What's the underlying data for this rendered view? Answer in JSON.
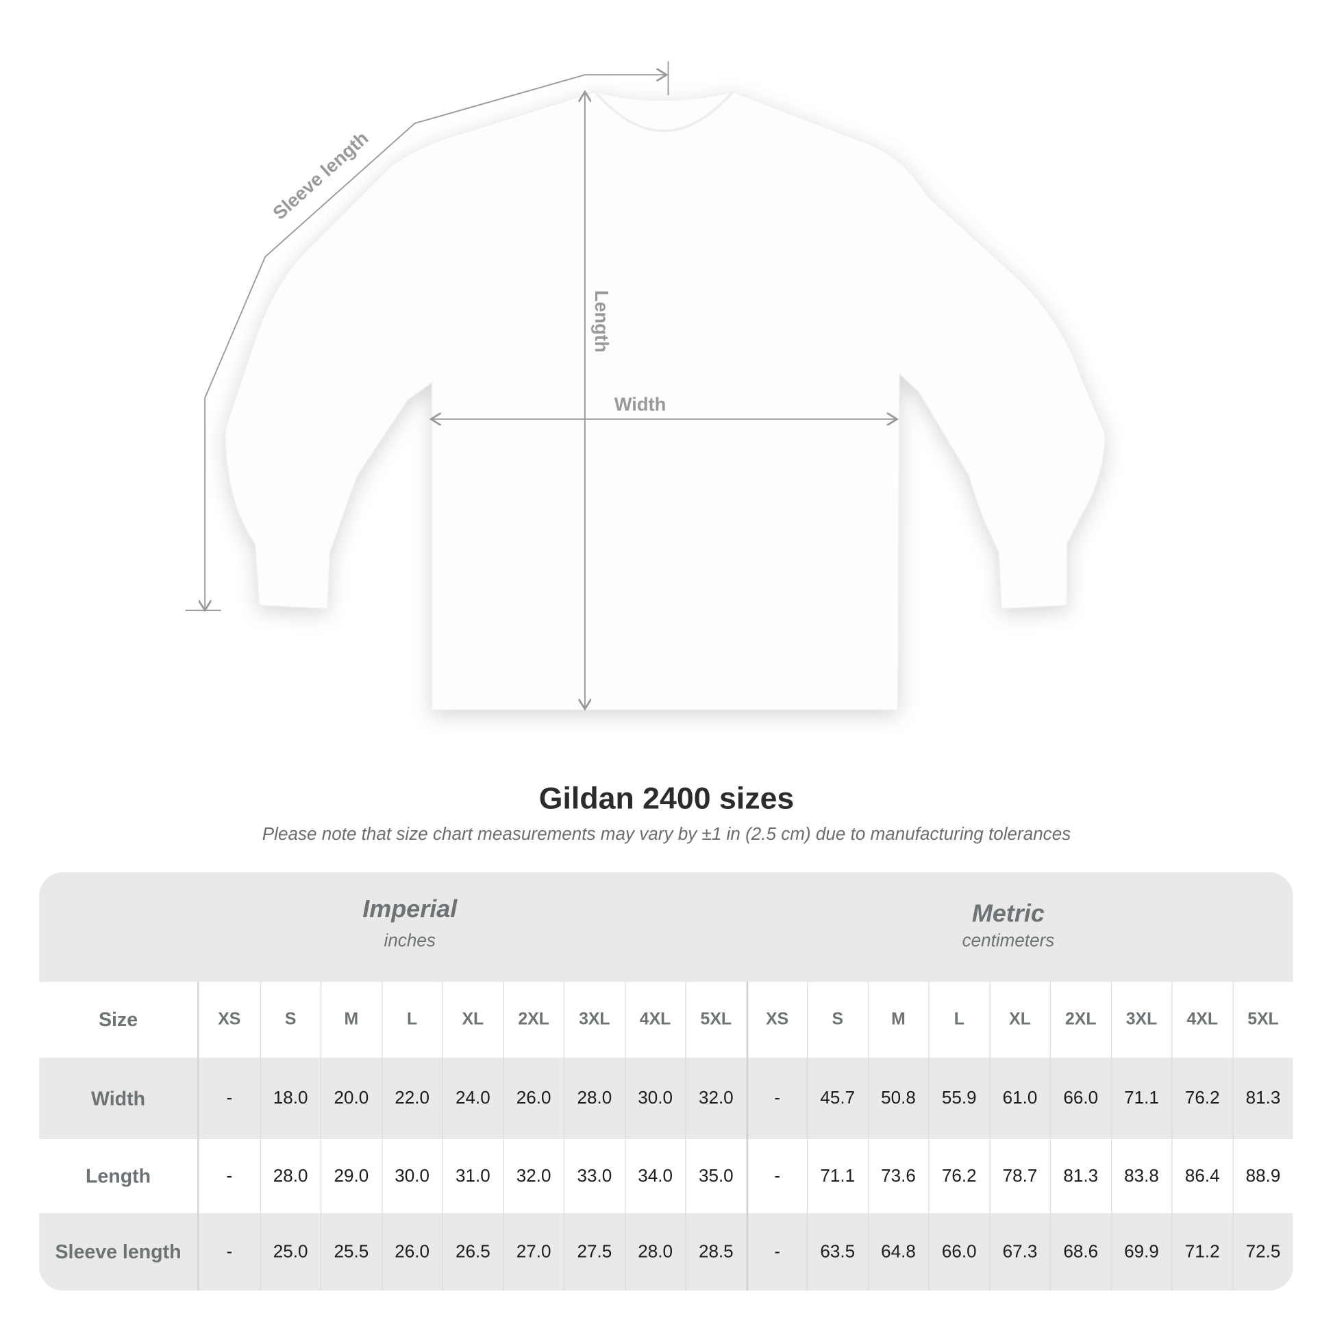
{
  "diagram": {
    "sleeve_label": "Sleeve length",
    "length_label": "Length",
    "width_label": "Width"
  },
  "title": "Gildan 2400 sizes",
  "note": "Please note that size chart measurements may vary by ±1 in (2.5 cm) due to manufacturing tolerances",
  "table": {
    "imperial": {
      "name": "Imperial",
      "unit": "inches"
    },
    "metric": {
      "name": "Metric",
      "unit": "centimeters"
    },
    "size_label": "Size",
    "sizes": [
      "XS",
      "S",
      "M",
      "L",
      "XL",
      "2XL",
      "3XL",
      "4XL",
      "5XL",
      "XS",
      "S",
      "M",
      "L",
      "XL",
      "2XL",
      "3XL",
      "4XL",
      "5XL"
    ],
    "rows": [
      {
        "label": "Width",
        "values": [
          "-",
          "18.0",
          "20.0",
          "22.0",
          "24.0",
          "26.0",
          "28.0",
          "30.0",
          "32.0",
          "-",
          "45.7",
          "50.8",
          "55.9",
          "61.0",
          "66.0",
          "71.1",
          "76.2",
          "81.3"
        ]
      },
      {
        "label": "Length",
        "values": [
          "-",
          "28.0",
          "29.0",
          "30.0",
          "31.0",
          "32.0",
          "33.0",
          "34.0",
          "35.0",
          "-",
          "71.1",
          "73.6",
          "76.2",
          "78.7",
          "81.3",
          "83.8",
          "86.4",
          "88.9"
        ]
      },
      {
        "label": "Sleeve length",
        "values": [
          "-",
          "25.0",
          "25.5",
          "26.0",
          "26.5",
          "27.0",
          "27.5",
          "28.0",
          "28.5",
          "-",
          "63.5",
          "64.8",
          "66.0",
          "67.3",
          "68.6",
          "69.9",
          "71.2",
          "72.5"
        ]
      }
    ]
  }
}
